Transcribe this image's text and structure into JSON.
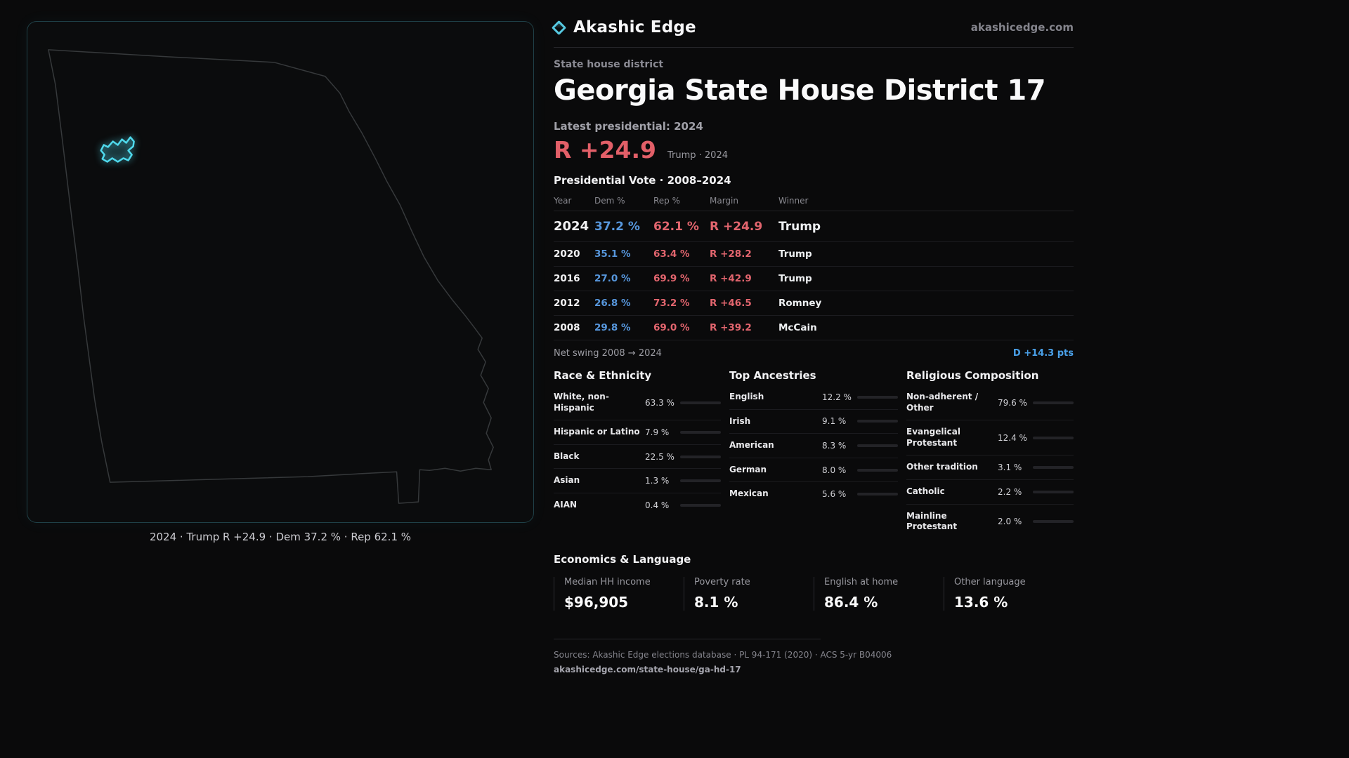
{
  "brand": {
    "name": "Akashic Edge",
    "domain": "akashicedge.com"
  },
  "page": {
    "kicker": "State house district",
    "title": "Georgia State House District 17"
  },
  "latest": {
    "label": "Latest presidential: 2024",
    "value": "R +24.9",
    "note": "Trump · 2024"
  },
  "vote_table": {
    "title": "Presidential Vote · 2008–2024",
    "columns": [
      "Year",
      "Dem %",
      "Rep %",
      "Margin",
      "Winner"
    ],
    "rows": [
      {
        "year": "2024",
        "dem": "37.2 %",
        "rep": "62.1 %",
        "margin": "R +24.9",
        "winner": "Trump"
      },
      {
        "year": "2020",
        "dem": "35.1 %",
        "rep": "63.4 %",
        "margin": "R +28.2",
        "winner": "Trump"
      },
      {
        "year": "2016",
        "dem": "27.0 %",
        "rep": "69.9 %",
        "margin": "R +42.9",
        "winner": "Trump"
      },
      {
        "year": "2012",
        "dem": "26.8 %",
        "rep": "73.2 %",
        "margin": "R +46.5",
        "winner": "Romney"
      },
      {
        "year": "2008",
        "dem": "29.8 %",
        "rep": "69.0 %",
        "margin": "R +39.2",
        "winner": "McCain"
      }
    ]
  },
  "net_swing": {
    "label": "Net swing 2008 → 2024",
    "value": "D +14.3 pts"
  },
  "race": {
    "title": "Race & Ethnicity",
    "rows": [
      {
        "label": "White, non-Hispanic",
        "value": "63.3 %",
        "pct": 63.3,
        "color": "#8f97b8"
      },
      {
        "label": "Hispanic or Latino",
        "value": "7.9 %",
        "pct": 7.9,
        "color": "#e0a23e"
      },
      {
        "label": "Black",
        "value": "22.5 %",
        "pct": 22.5,
        "color": "#8d7fd6"
      },
      {
        "label": "Asian",
        "value": "1.3 %",
        "pct": 1.3,
        "color": "#5fb98a"
      },
      {
        "label": "AIAN",
        "value": "0.4 %",
        "pct": 0.4,
        "color": "#9aa0a8"
      }
    ]
  },
  "ancestries": {
    "title": "Top Ancestries",
    "rows": [
      {
        "label": "English",
        "value": "12.2 %",
        "pct": 12.2,
        "color": "#9aa0a8"
      },
      {
        "label": "Irish",
        "value": "9.1 %",
        "pct": 9.1,
        "color": "#9aa0a8"
      },
      {
        "label": "American",
        "value": "8.3 %",
        "pct": 8.3,
        "color": "#9aa0a8"
      },
      {
        "label": "German",
        "value": "8.0 %",
        "pct": 8.0,
        "color": "#9aa0a8"
      },
      {
        "label": "Mexican",
        "value": "5.6 %",
        "pct": 5.6,
        "color": "#e0a23e"
      }
    ]
  },
  "religion": {
    "title": "Religious Composition",
    "rows": [
      {
        "label": "Non-adherent / Other",
        "value": "79.6 %",
        "pct": 79.6,
        "color": "#9aa0b8"
      },
      {
        "label": "Evangelical Protestant",
        "value": "12.4 %",
        "pct": 12.4,
        "color": "#e0646c"
      },
      {
        "label": "Other tradition",
        "value": "3.1 %",
        "pct": 3.1,
        "color": "#9aa0a8"
      },
      {
        "label": "Catholic",
        "value": "2.2 %",
        "pct": 2.2,
        "color": "#e0a23e"
      },
      {
        "label": "Mainline Protestant",
        "value": "2.0 %",
        "pct": 2.0,
        "color": "#9aa0a8"
      }
    ]
  },
  "economics": {
    "title": "Economics & Language",
    "stats": [
      {
        "label": "Median HH income",
        "value": "$96,905"
      },
      {
        "label": "Poverty rate",
        "value": "8.1 %"
      },
      {
        "label": "English at home",
        "value": "86.4 %"
      },
      {
        "label": "Other language",
        "value": "13.6 %"
      }
    ]
  },
  "map": {
    "caption": "2024 · Trump R +24.9 · Dem 37.2 % · Rep 62.1 %"
  },
  "footer": {
    "sources": "Sources: Akashic Edge elections database · PL 94-171 (2020) · ACS 5-yr B04006",
    "permalink": "akashicedge.com/state-house/ga-hd-17"
  }
}
